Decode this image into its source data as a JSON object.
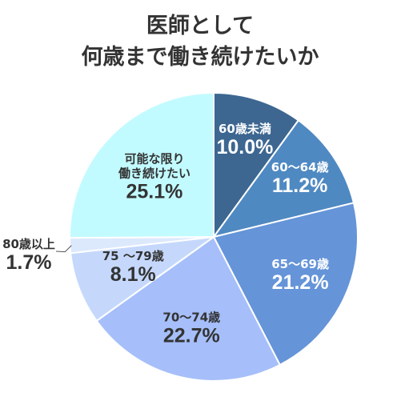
{
  "title_lines": [
    "医師として",
    "何歳まで働き続けたいか"
  ],
  "chart_data": {
    "type": "pie",
    "title": "医師として何歳まで働き続けたいか",
    "unit": "%",
    "slices": [
      {
        "label": [
          "60歳未満"
        ],
        "value": 10.0,
        "value_label": "10.0%",
        "color": "#3d6791",
        "text_color": "#ffffff"
      },
      {
        "label": [
          "60～64歳"
        ],
        "value": 11.2,
        "value_label": "11.2%",
        "color": "#4f89c2",
        "text_color": "#ffffff"
      },
      {
        "label": [
          "65～69歳"
        ],
        "value": 21.2,
        "value_label": "21.2%",
        "color": "#6594d8",
        "text_color": "#ffffff"
      },
      {
        "label": [
          "70～74歳"
        ],
        "value": 22.7,
        "value_label": "22.7%",
        "color": "#a6bffa",
        "text_color": "#333333"
      },
      {
        "label": [
          "75 ～79歳"
        ],
        "value": 8.1,
        "value_label": "8.1%",
        "color": "#c5d8fc",
        "text_color": "#333333"
      },
      {
        "label": [
          "80歳以上"
        ],
        "value": 1.7,
        "value_label": "1.7%",
        "color": "#dce9fd",
        "text_color": "#333333"
      },
      {
        "label": [
          "可能な限り",
          "働き続けたい"
        ],
        "value": 25.1,
        "value_label": "25.1%",
        "color": "#c2fbff",
        "text_color": "#333333"
      }
    ]
  }
}
